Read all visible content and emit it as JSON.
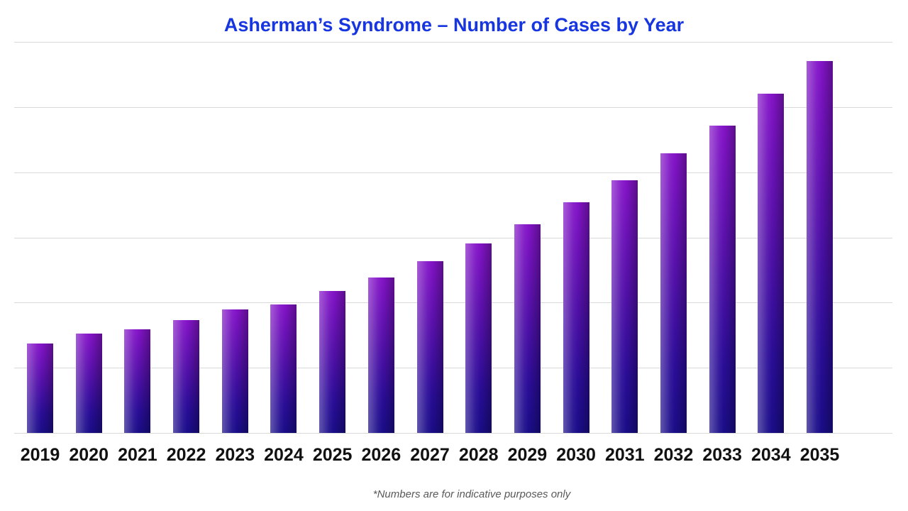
{
  "chart_data": {
    "type": "bar",
    "title": "Asherman’s Syndrome – Number of Cases by Year",
    "footnote": "*Numbers are for indicative purposes only",
    "categories": [
      "2019",
      "2020",
      "2021",
      "2022",
      "2023",
      "2024",
      "2025",
      "2026",
      "2027",
      "2028",
      "2029",
      "2030",
      "2031",
      "2032",
      "2033",
      "2034",
      "2035"
    ],
    "values": [
      137,
      152,
      159,
      173,
      190,
      197,
      218,
      239,
      264,
      291,
      320,
      354,
      388,
      429,
      471,
      520,
      571
    ],
    "xlabel": "",
    "ylabel": "",
    "ylim": [
      0,
      600
    ],
    "gridline_count": 7,
    "grid": true,
    "legend": false,
    "y_axis_tick_labels_visible": false
  },
  "style": {
    "background": "#ffffff",
    "title_color": "#1836e0",
    "bar_gradient_top": "#8414c8",
    "bar_gradient_bottom": "#1a0d88",
    "gridline_color": "#d9d9d9",
    "x_label_color": "#111111",
    "footnote_color": "#595959"
  }
}
